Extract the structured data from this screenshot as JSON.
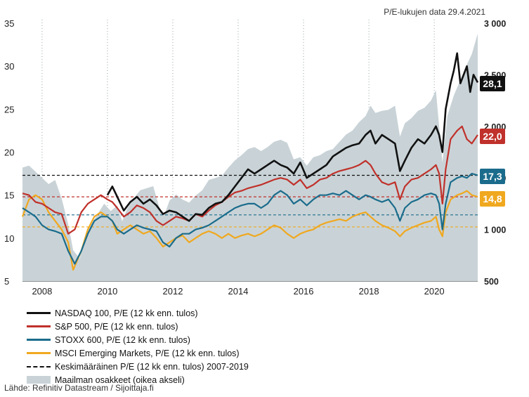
{
  "note": "P/E-lukujen data 29.4.2021",
  "source": "Lähde: Refinitiv Datastream / Sijoittaja.fi",
  "chart_data": {
    "type": "line",
    "x_range": [
      2007.4,
      2021.33
    ],
    "x_ticks": [
      "2008",
      "2010",
      "2012",
      "2014",
      "2016",
      "2018",
      "2020"
    ],
    "x_tick_values": [
      2008,
      2010,
      2012,
      2014,
      2016,
      2018,
      2020
    ],
    "y_left": {
      "min": 5,
      "max": 35,
      "ticks": [
        "5",
        "10",
        "15",
        "20",
        "25",
        "30",
        "35"
      ],
      "tick_values": [
        5,
        10,
        15,
        20,
        25,
        30,
        35
      ]
    },
    "y_right": {
      "ticks": [
        "500",
        "1 000",
        "1 500",
        "2 000",
        "2 500",
        "3 000"
      ],
      "tick_values": [
        500,
        1000,
        1500,
        2000,
        2500,
        3000
      ]
    },
    "grid": "vertical dotted",
    "area_series": {
      "name": "Maailman osakkeet (oikea akseli)",
      "axis": "right",
      "color": "#c9d3d7",
      "x": [
        2007.4,
        2007.6,
        2007.8,
        2008.0,
        2008.2,
        2008.4,
        2008.6,
        2008.8,
        2008.95,
        2009.15,
        2009.3,
        2009.5,
        2009.7,
        2009.9,
        2010.1,
        2010.3,
        2010.45,
        2010.6,
        2010.8,
        2011.0,
        2011.2,
        2011.4,
        2011.6,
        2011.75,
        2011.9,
        2012.1,
        2012.3,
        2012.5,
        2012.7,
        2012.9,
        2013.1,
        2013.3,
        2013.5,
        2013.7,
        2013.9,
        2014.1,
        2014.3,
        2014.5,
        2014.7,
        2014.9,
        2015.1,
        2015.3,
        2015.5,
        2015.7,
        2015.9,
        2016.1,
        2016.3,
        2016.5,
        2016.7,
        2016.9,
        2017.1,
        2017.3,
        2017.5,
        2017.7,
        2017.9,
        2018.05,
        2018.2,
        2018.4,
        2018.6,
        2018.8,
        2018.95,
        2019.1,
        2019.3,
        2019.5,
        2019.7,
        2019.9,
        2020.05,
        2020.15,
        2020.25,
        2020.4,
        2020.6,
        2020.8,
        2021.0,
        2021.15,
        2021.33
      ],
      "values": [
        1600,
        1620,
        1560,
        1500,
        1440,
        1480,
        1300,
        1050,
        800,
        720,
        920,
        1050,
        1150,
        1250,
        1180,
        1230,
        1080,
        1200,
        1300,
        1380,
        1400,
        1420,
        1200,
        1150,
        1280,
        1340,
        1290,
        1260,
        1330,
        1380,
        1480,
        1500,
        1520,
        1600,
        1670,
        1720,
        1780,
        1800,
        1760,
        1800,
        1850,
        1870,
        1840,
        1680,
        1700,
        1620,
        1700,
        1720,
        1760,
        1780,
        1850,
        1920,
        1960,
        2040,
        2100,
        2200,
        2130,
        2150,
        2160,
        2200,
        1900,
        2030,
        2080,
        2150,
        2180,
        2250,
        2350,
        2000,
        1650,
        2100,
        2300,
        2450,
        2600,
        2700,
        2900
      ]
    },
    "series": [
      {
        "name": "NASDAQ 100, P/E (12 kk enn. tulos)",
        "color": "#111111",
        "end_label": "28,1",
        "x": [
          2010.0,
          2010.15,
          2010.3,
          2010.5,
          2010.7,
          2010.9,
          2011.1,
          2011.3,
          2011.5,
          2011.7,
          2011.9,
          2012.1,
          2012.3,
          2012.5,
          2012.7,
          2012.9,
          2013.1,
          2013.3,
          2013.5,
          2013.7,
          2013.9,
          2014.1,
          2014.3,
          2014.5,
          2014.7,
          2014.9,
          2015.1,
          2015.3,
          2015.5,
          2015.7,
          2015.9,
          2016.1,
          2016.3,
          2016.5,
          2016.7,
          2016.9,
          2017.1,
          2017.3,
          2017.5,
          2017.7,
          2017.9,
          2018.05,
          2018.2,
          2018.4,
          2018.6,
          2018.8,
          2018.95,
          2019.1,
          2019.3,
          2019.5,
          2019.7,
          2019.9,
          2020.05,
          2020.15,
          2020.25,
          2020.35,
          2020.5,
          2020.6,
          2020.7,
          2020.8,
          2020.9,
          2021.0,
          2021.1,
          2021.2,
          2021.33
        ],
        "values": [
          15.0,
          16.0,
          14.8,
          13.2,
          14.2,
          14.8,
          14.0,
          14.5,
          13.8,
          12.8,
          13.2,
          13.0,
          12.5,
          12.0,
          12.8,
          12.7,
          13.5,
          14.0,
          14.2,
          15.0,
          16.0,
          17.0,
          18.0,
          17.5,
          18.0,
          18.5,
          19.0,
          18.5,
          18.2,
          17.5,
          18.8,
          17.0,
          17.5,
          18.0,
          18.5,
          19.5,
          20.0,
          20.5,
          20.8,
          21.0,
          22.0,
          22.5,
          21.0,
          22.0,
          21.5,
          21.0,
          17.8,
          19.0,
          20.5,
          21.5,
          21.0,
          22.0,
          23.0,
          22.0,
          20.0,
          25.0,
          28.0,
          29.5,
          31.5,
          28.0,
          29.0,
          30.0,
          27.0,
          29.0,
          28.1
        ]
      },
      {
        "name": "S&P 500, P/E (12 kk enn. tulos)",
        "color": "#c0312b",
        "end_label": "22,0",
        "x": [
          2007.4,
          2007.6,
          2007.8,
          2008.0,
          2008.2,
          2008.4,
          2008.6,
          2008.8,
          2009.0,
          2009.2,
          2009.4,
          2009.6,
          2009.8,
          2010.0,
          2010.15,
          2010.3,
          2010.5,
          2010.7,
          2010.9,
          2011.1,
          2011.3,
          2011.5,
          2011.7,
          2011.9,
          2012.1,
          2012.3,
          2012.5,
          2012.7,
          2012.9,
          2013.1,
          2013.3,
          2013.5,
          2013.7,
          2013.9,
          2014.1,
          2014.3,
          2014.5,
          2014.7,
          2014.9,
          2015.1,
          2015.3,
          2015.5,
          2015.7,
          2015.9,
          2016.1,
          2016.3,
          2016.5,
          2016.7,
          2016.9,
          2017.1,
          2017.3,
          2017.5,
          2017.7,
          2017.9,
          2018.05,
          2018.2,
          2018.4,
          2018.6,
          2018.8,
          2018.95,
          2019.1,
          2019.3,
          2019.5,
          2019.7,
          2019.9,
          2020.05,
          2020.15,
          2020.25,
          2020.35,
          2020.5,
          2020.7,
          2020.85,
          2021.0,
          2021.15,
          2021.33
        ],
        "values": [
          15.2,
          15.0,
          14.2,
          14.0,
          13.5,
          13.0,
          12.8,
          10.5,
          11.0,
          13.0,
          14.0,
          14.5,
          15.0,
          14.5,
          14.2,
          13.5,
          12.5,
          13.0,
          13.8,
          13.5,
          13.0,
          12.0,
          11.5,
          12.0,
          12.5,
          12.3,
          12.0,
          12.8,
          12.5,
          13.2,
          13.8,
          14.2,
          14.8,
          15.3,
          15.5,
          15.8,
          16.0,
          16.2,
          16.5,
          16.8,
          17.0,
          16.8,
          16.2,
          16.8,
          15.8,
          16.2,
          16.8,
          17.0,
          17.5,
          17.8,
          18.0,
          18.2,
          18.5,
          19.0,
          18.5,
          17.5,
          16.5,
          16.2,
          16.5,
          14.5,
          16.0,
          16.8,
          17.0,
          17.5,
          18.0,
          18.5,
          17.5,
          14.0,
          18.0,
          21.5,
          22.5,
          23.0,
          21.5,
          21.0,
          22.0
        ]
      },
      {
        "name": "STOXX 600, P/E (12 kk enn. tulos)",
        "color": "#1b6c8c",
        "end_label": "17,3",
        "x": [
          2007.4,
          2007.6,
          2007.8,
          2008.0,
          2008.2,
          2008.4,
          2008.6,
          2008.8,
          2009.0,
          2009.2,
          2009.4,
          2009.6,
          2009.8,
          2010.0,
          2010.15,
          2010.3,
          2010.5,
          2010.7,
          2010.9,
          2011.1,
          2011.3,
          2011.5,
          2011.7,
          2011.9,
          2012.1,
          2012.3,
          2012.5,
          2012.7,
          2012.9,
          2013.1,
          2013.3,
          2013.5,
          2013.7,
          2013.9,
          2014.1,
          2014.3,
          2014.5,
          2014.7,
          2014.9,
          2015.1,
          2015.3,
          2015.5,
          2015.7,
          2015.9,
          2016.1,
          2016.3,
          2016.5,
          2016.7,
          2016.9,
          2017.1,
          2017.3,
          2017.5,
          2017.7,
          2017.9,
          2018.05,
          2018.2,
          2018.4,
          2018.6,
          2018.8,
          2018.95,
          2019.1,
          2019.3,
          2019.5,
          2019.7,
          2019.9,
          2020.05,
          2020.15,
          2020.25,
          2020.35,
          2020.5,
          2020.7,
          2020.85,
          2021.0,
          2021.15,
          2021.33
        ],
        "values": [
          13.5,
          13.0,
          12.5,
          11.5,
          11.0,
          10.8,
          10.5,
          8.5,
          7.0,
          8.5,
          10.5,
          12.0,
          12.5,
          12.5,
          12.0,
          11.0,
          10.5,
          11.0,
          11.5,
          11.2,
          11.0,
          10.8,
          9.5,
          9.0,
          10.0,
          10.5,
          10.5,
          11.0,
          11.2,
          11.5,
          12.0,
          12.5,
          13.0,
          13.5,
          13.8,
          14.0,
          14.0,
          13.5,
          14.0,
          15.0,
          15.5,
          15.0,
          14.0,
          14.5,
          13.8,
          14.5,
          15.0,
          15.0,
          15.2,
          15.0,
          15.5,
          15.0,
          14.5,
          15.0,
          14.8,
          14.5,
          14.2,
          14.5,
          13.5,
          12.0,
          13.5,
          14.2,
          14.5,
          15.0,
          15.2,
          15.0,
          14.0,
          11.0,
          14.0,
          16.5,
          17.0,
          17.2,
          17.0,
          17.5,
          17.3
        ]
      },
      {
        "name": "MSCI Emerging Markets, P/E (12 kk enn. tulos)",
        "color": "#f0a81f",
        "end_label": "14,8",
        "x": [
          2007.4,
          2007.6,
          2007.8,
          2008.0,
          2008.2,
          2008.4,
          2008.6,
          2008.8,
          2008.95,
          2009.2,
          2009.4,
          2009.6,
          2009.8,
          2010.0,
          2010.15,
          2010.3,
          2010.5,
          2010.7,
          2010.9,
          2011.1,
          2011.3,
          2011.5,
          2011.7,
          2011.9,
          2012.1,
          2012.3,
          2012.5,
          2012.7,
          2012.9,
          2013.1,
          2013.3,
          2013.5,
          2013.7,
          2013.9,
          2014.1,
          2014.3,
          2014.5,
          2014.7,
          2014.9,
          2015.1,
          2015.3,
          2015.5,
          2015.7,
          2015.9,
          2016.1,
          2016.3,
          2016.5,
          2016.7,
          2016.9,
          2017.1,
          2017.3,
          2017.5,
          2017.7,
          2017.9,
          2018.05,
          2018.2,
          2018.4,
          2018.6,
          2018.8,
          2018.95,
          2019.1,
          2019.3,
          2019.5,
          2019.7,
          2019.9,
          2020.05,
          2020.15,
          2020.25,
          2020.35,
          2020.5,
          2020.7,
          2020.85,
          2021.0,
          2021.15,
          2021.33
        ],
        "values": [
          12.5,
          14.5,
          15.0,
          14.5,
          13.0,
          12.0,
          11.0,
          9.5,
          6.3,
          8.5,
          11.0,
          12.5,
          13.0,
          12.5,
          12.0,
          10.5,
          11.0,
          11.5,
          11.0,
          10.5,
          10.8,
          10.0,
          9.0,
          9.5,
          10.0,
          10.3,
          9.5,
          10.0,
          10.5,
          10.8,
          10.5,
          10.0,
          10.5,
          10.0,
          10.3,
          10.5,
          10.2,
          10.5,
          11.0,
          11.5,
          11.2,
          10.5,
          10.0,
          10.5,
          10.8,
          11.0,
          11.5,
          11.8,
          12.0,
          12.2,
          12.0,
          12.5,
          12.8,
          13.0,
          12.5,
          12.0,
          11.5,
          11.2,
          10.8,
          10.2,
          10.8,
          11.2,
          11.5,
          11.8,
          12.0,
          12.5,
          11.0,
          10.2,
          13.0,
          14.5,
          15.0,
          15.2,
          15.5,
          15.0,
          14.8
        ]
      }
    ],
    "average_lines": [
      {
        "series": "NASDAQ 100",
        "value": 17.3,
        "color": "#111111"
      },
      {
        "series": "S&P 500",
        "value": 14.8,
        "color": "#c0312b"
      },
      {
        "series": "STOXX 600",
        "value": 12.7,
        "color": "#1b6c8c"
      },
      {
        "series": "MSCI Emerging Markets",
        "value": 11.3,
        "color": "#f0a81f"
      }
    ],
    "legend": [
      {
        "label": "NASDAQ 100, P/E (12 kk enn. tulos)",
        "color": "#111111",
        "style": "line"
      },
      {
        "label": "S&P 500, P/E (12 kk enn. tulos)",
        "color": "#c0312b",
        "style": "line"
      },
      {
        "label": "STOXX 600, P/E (12 kk enn. tulos)",
        "color": "#1b6c8c",
        "style": "line"
      },
      {
        "label": "MSCI Emerging Markets, P/E (12 kk enn. tulos)",
        "color": "#f0a81f",
        "style": "line"
      },
      {
        "label": "Keskimääräinen P/E (12 kk enn. tulos) 2007-2019",
        "color": "#111111",
        "style": "dash"
      },
      {
        "label": "Maailman osakkeet (oikea akseli)",
        "color": "#c9d3d7",
        "style": "area"
      }
    ],
    "legend_position": "bottom-left"
  }
}
